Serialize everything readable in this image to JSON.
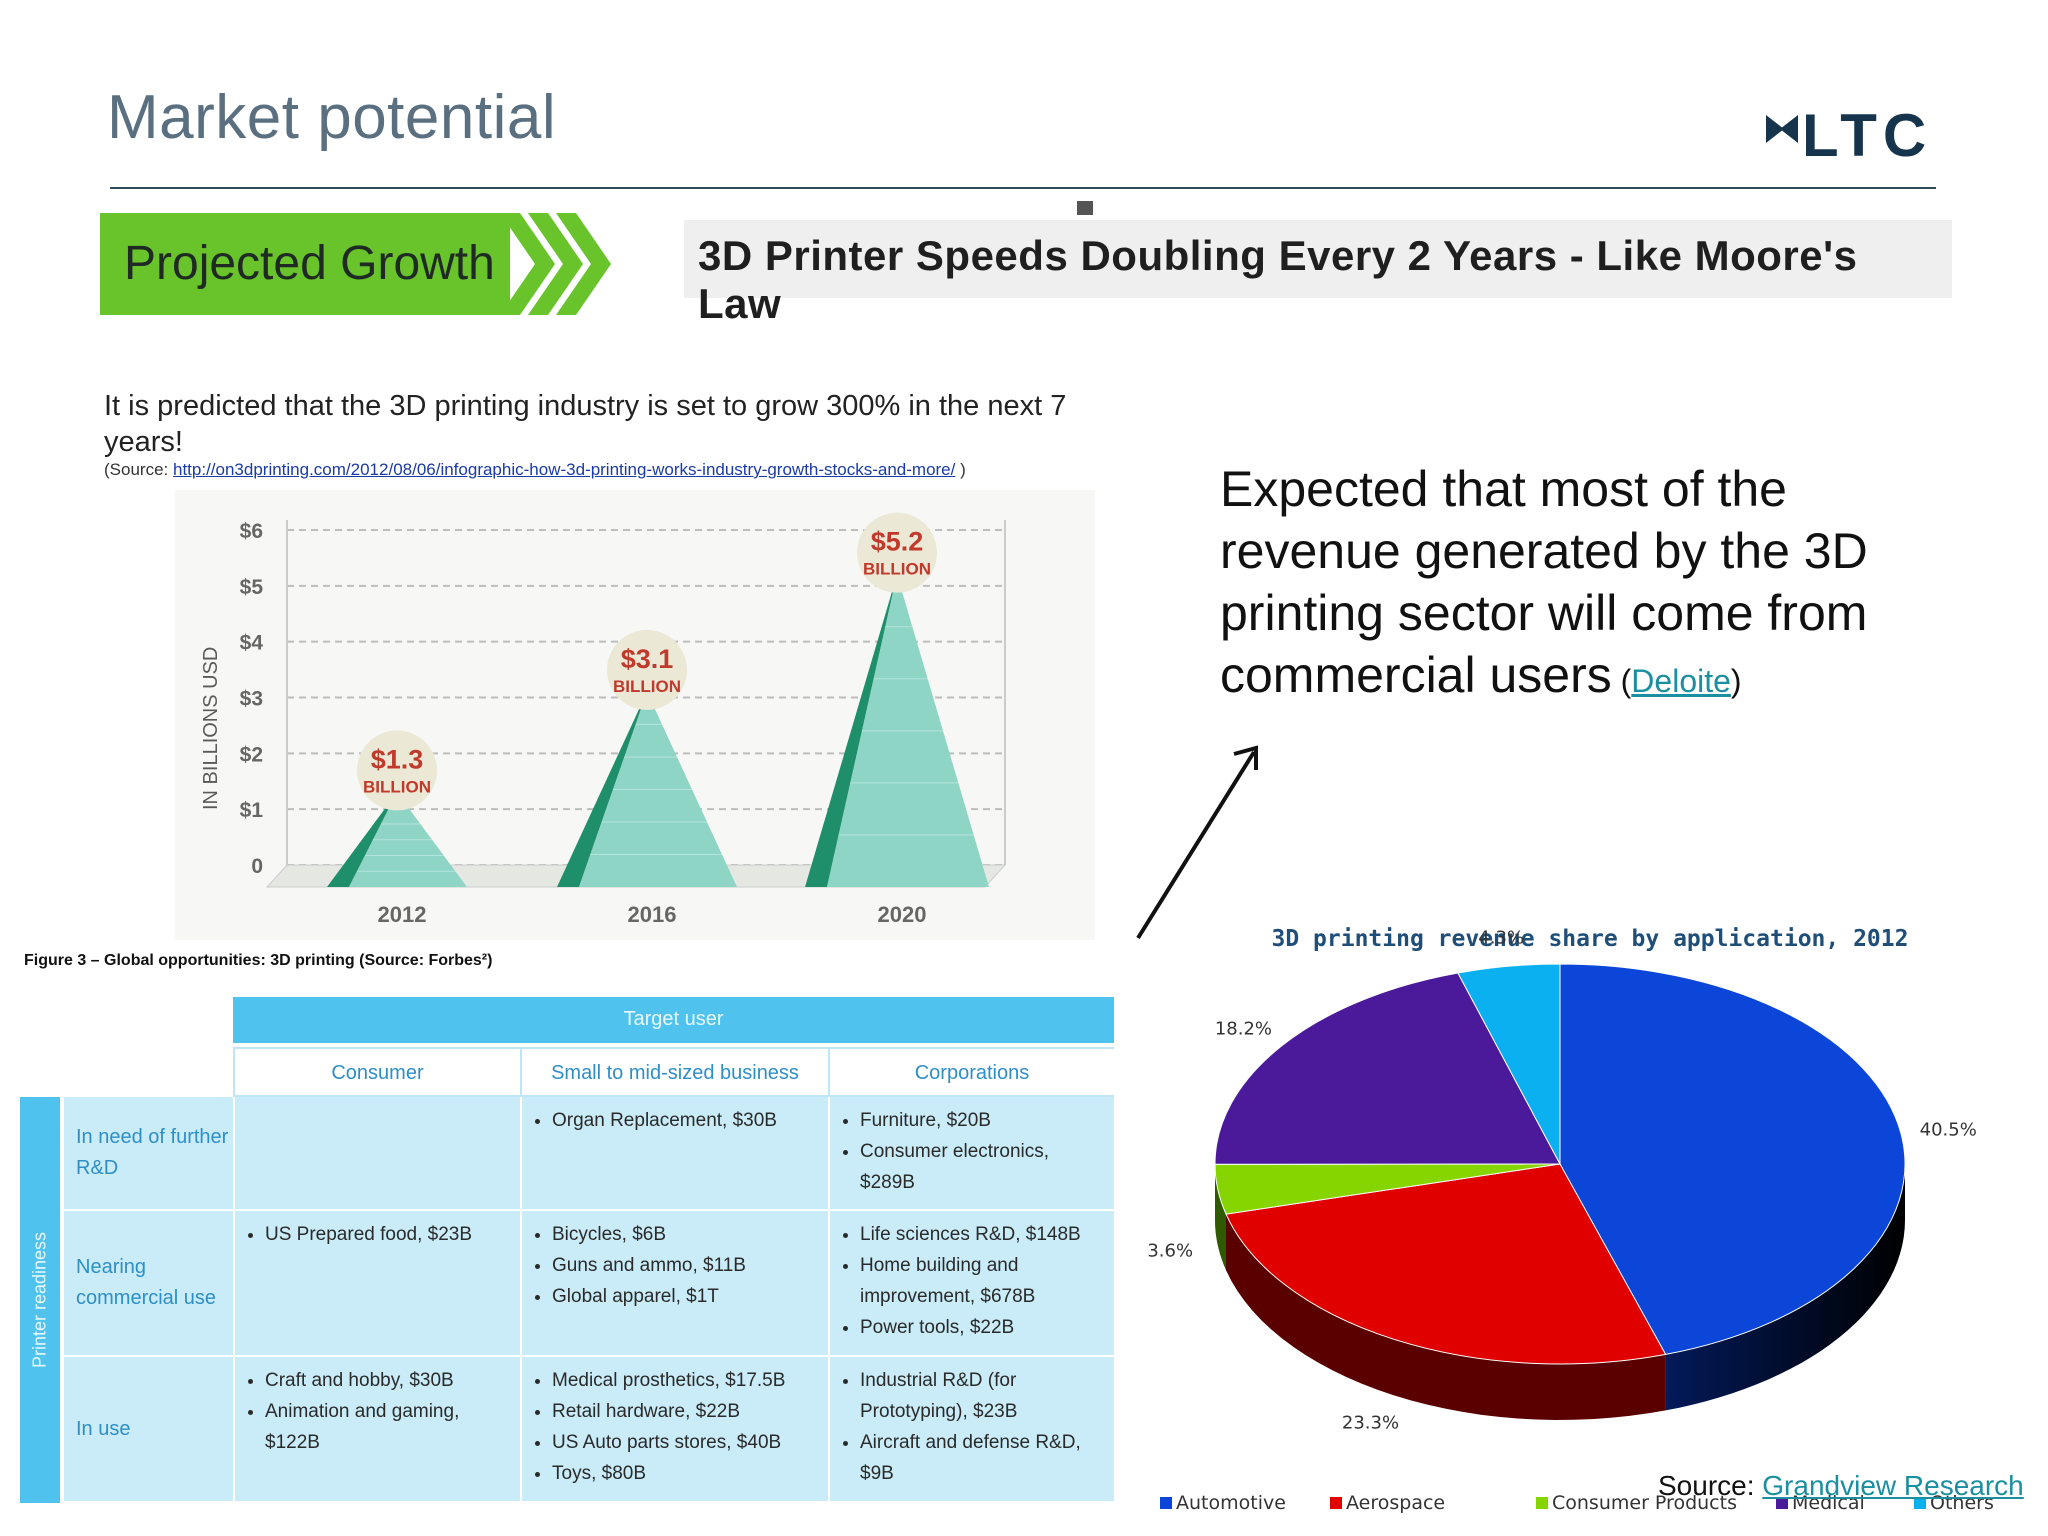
{
  "header": {
    "title": "Market potential",
    "logo_text": "LTC"
  },
  "banner": {
    "label": "Projected Growth",
    "headline": "3D Printer Speeds Doubling Every 2 Years - Like Moore's Law"
  },
  "prediction": {
    "text": "It is predicted that the 3D printing industry is set to grow 300% in the next 7 years!",
    "source_prefix": "(Source: ",
    "source_url": "http://on3dprinting.com/2012/08/06/infographic-how-3d-printing-works-industry-growth-stocks-and-more/",
    "source_suffix": " )"
  },
  "expectation": {
    "text": "Expected that most of the revenue generated by the 3D printing sector will come from commercial users",
    "paren_open": " (",
    "link": "Deloite",
    "paren_close": ")"
  },
  "figure_caption": "Figure 3 – Global opportunities: 3D printing (Source: Forbes²)",
  "table": {
    "top_header": "Target user",
    "side_header": "Printer readiness",
    "columns": [
      "Consumer",
      "Small to mid-sized business",
      "Corporations"
    ],
    "rows": [
      {
        "label": "In need of further R&D",
        "cells": [
          [],
          [
            "Organ Replacement, $30B"
          ],
          [
            "Furniture, $20B",
            "Consumer electronics, $289B"
          ]
        ]
      },
      {
        "label": "Nearing commercial use",
        "cells": [
          [
            "US Prepared food, $23B"
          ],
          [
            "Bicycles, $6B",
            "Guns and ammo, $11B",
            "Global apparel, $1T"
          ],
          [
            "Life sciences R&D, $148B",
            "Home building and improvement, $678B",
            "Power tools, $22B"
          ]
        ]
      },
      {
        "label": "In use",
        "cells": [
          [
            "Craft and hobby, $30B",
            "Animation and gaming, $122B"
          ],
          [
            "Medical prosthetics, $17.5B",
            "Retail hardware, $22B",
            "US Auto parts stores, $40B",
            "Toys, $80B"
          ],
          [
            "Industrial R&D (for Prototyping), $23B",
            "Aircraft and defense R&D, $9B"
          ]
        ]
      }
    ]
  },
  "source_note": {
    "prefix": "Source: ",
    "link": "Grandview Research"
  },
  "colors": {
    "green": "#69c32b",
    "teal": "#2aa77a",
    "table_blue": "#c9ecf8",
    "header_blue": "#4fc3ee",
    "pie_automotive": "#0b46d8",
    "pie_aerospace": "#e00000",
    "pie_consumer": "#86d400",
    "pie_medical": "#4a1a9a",
    "pie_others": "#0ab0ef"
  },
  "chart_data": [
    {
      "type": "bar",
      "title": "",
      "ylabel": "IN BILLIONS USD",
      "categories": [
        "2012",
        "2016",
        "2020"
      ],
      "values": [
        1.3,
        3.1,
        5.2
      ],
      "value_labels": [
        {
          "amount": "$1.3",
          "unit": "BILLION"
        },
        {
          "amount": "$3.1",
          "unit": "BILLION"
        },
        {
          "amount": "$5.2",
          "unit": "BILLION"
        }
      ],
      "yticks": [
        "0",
        "$1",
        "$2",
        "$3",
        "$4",
        "$5",
        "$6"
      ],
      "ylim": [
        0,
        6
      ],
      "grid": true
    },
    {
      "type": "pie",
      "title": "3D printing revenue share by application, 2012",
      "labels": [
        "Automotive",
        "Aerospace",
        "Consumer Products",
        "Medical",
        "Others"
      ],
      "values": [
        40.5,
        23.3,
        3.6,
        18.2,
        4.3
      ],
      "value_labels": [
        "40.5%",
        "23.3%",
        "3.6%",
        "18.2%",
        "4.3%"
      ],
      "legend": "bottom"
    }
  ]
}
